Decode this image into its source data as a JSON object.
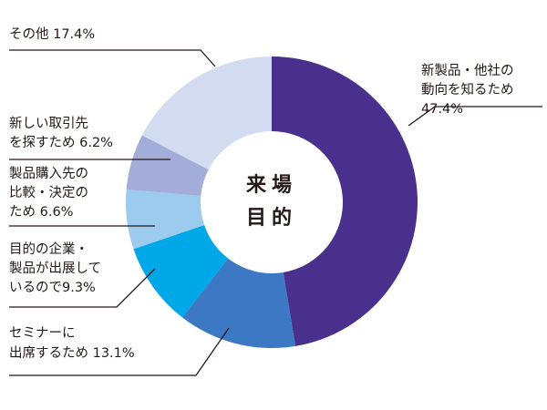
{
  "chart_data": {
    "type": "pie",
    "title": "",
    "center_label": [
      "来場",
      "目的"
    ],
    "unit": "%",
    "slices": [
      {
        "label": [
          "新製品・他社の",
          "動向を知るため",
          "47.4%"
        ],
        "value": 47.4,
        "color": "#48308c"
      },
      {
        "label": [
          "セミナーに",
          "出席するため 13.1%"
        ],
        "value": 13.1,
        "color": "#3d78c4"
      },
      {
        "label": [
          "目的の企業・",
          "製品が出展して",
          "いるので9.3%"
        ],
        "value": 9.3,
        "color": "#00a8e8"
      },
      {
        "label": [
          "製品購入先の",
          "比較・決定の",
          "ため 6.6%"
        ],
        "value": 6.6,
        "color": "#9ccbed"
      },
      {
        "label": [
          "新しい取引先",
          "を探すため 6.2%"
        ],
        "value": 6.2,
        "color": "#a4acd9"
      },
      {
        "label": [
          "その他 17.4%"
        ],
        "value": 17.4,
        "color": "#d3dbf0"
      }
    ],
    "legend": "none"
  }
}
